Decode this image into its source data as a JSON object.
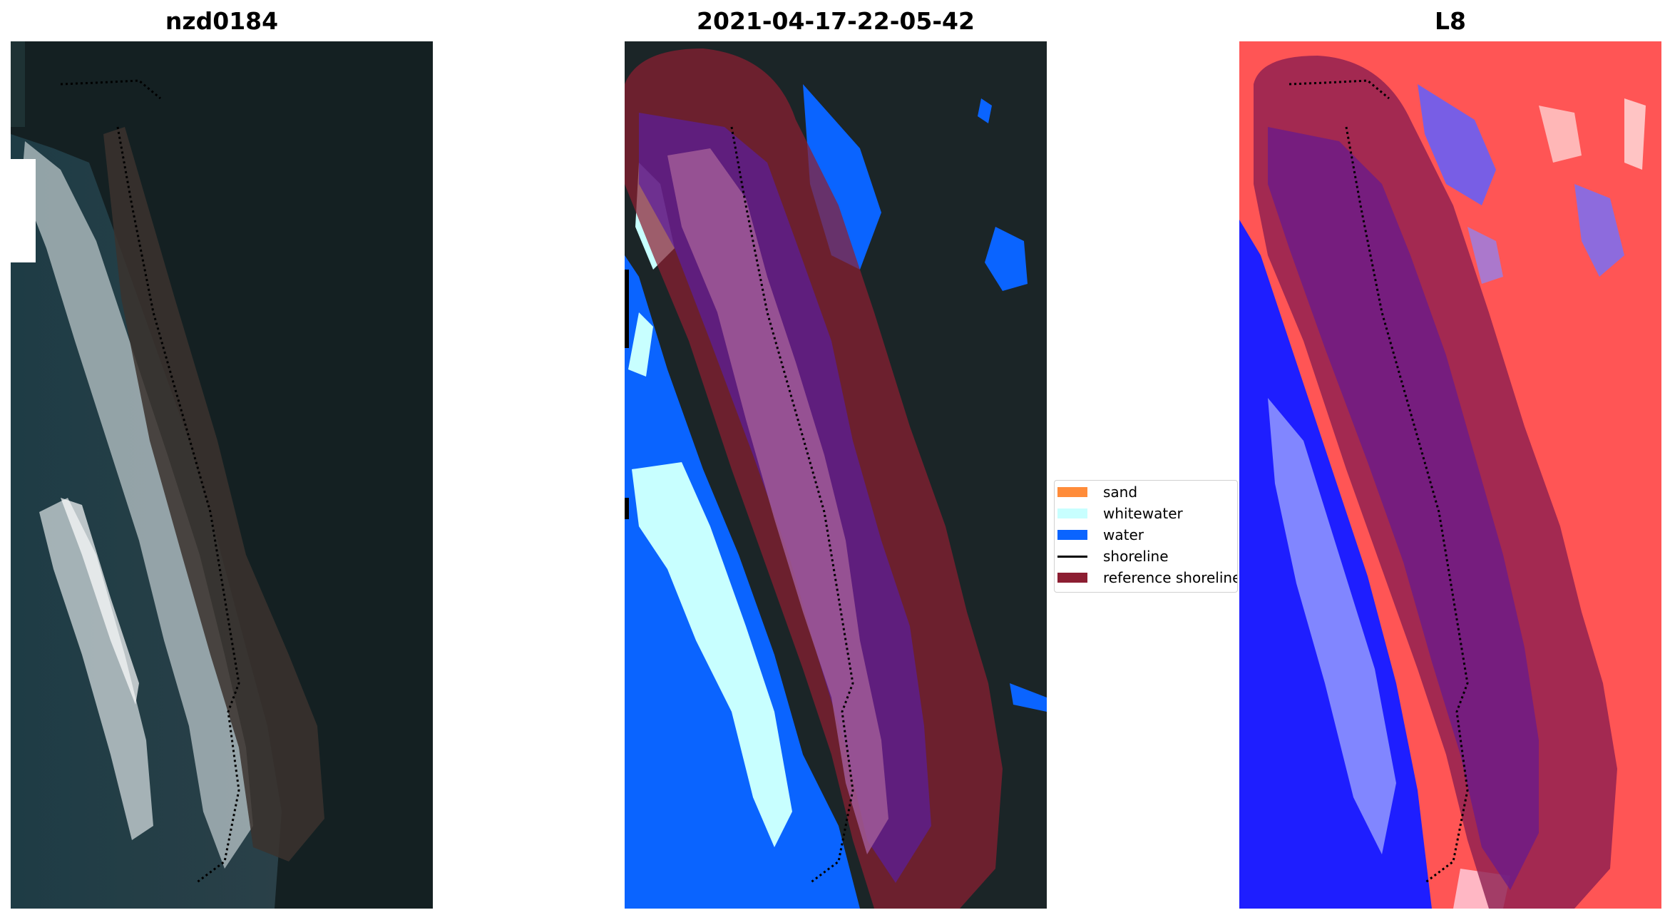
{
  "panels": [
    {
      "title": "nzd0184"
    },
    {
      "title": "2021-04-17-22-05-42"
    },
    {
      "title": "L8"
    }
  ],
  "legend": {
    "items": [
      {
        "label": "sand",
        "color": "#ff8c3a",
        "kind": "patch"
      },
      {
        "label": "whitewater",
        "color": "#c8ffff",
        "kind": "patch"
      },
      {
        "label": "water",
        "color": "#0a64ff",
        "kind": "patch"
      },
      {
        "label": "shoreline",
        "color": "#000000",
        "kind": "line"
      },
      {
        "label": "reference shoreline",
        "color": "#8c1e32",
        "kind": "patch"
      }
    ]
  },
  "colors": {
    "dark_land": "#1b2527",
    "water_blue": "#0a64ff",
    "whitewater": "#c8ffff",
    "reference_overlay": "#8c1e32",
    "index_positive": "#ff3030",
    "index_negative": "#1a1aff"
  }
}
